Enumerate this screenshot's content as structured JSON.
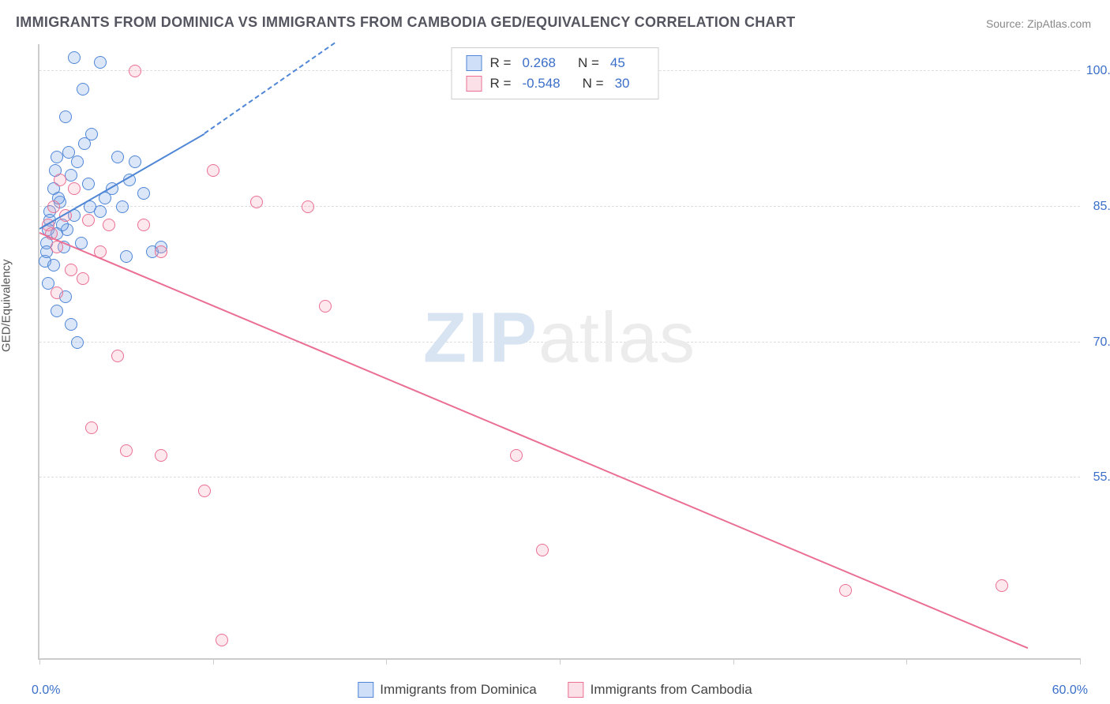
{
  "title": "IMMIGRANTS FROM DOMINICA VS IMMIGRANTS FROM CAMBODIA GED/EQUIVALENCY CORRELATION CHART",
  "source_label": "Source: ",
  "source_site": "ZipAtlas.com",
  "watermark": {
    "part1": "ZIP",
    "part2": "atlas"
  },
  "y_axis_title": "GED/Equivalency",
  "chart": {
    "type": "scatter",
    "xlim": [
      0,
      60
    ],
    "ylim": [
      35,
      103
    ],
    "x_ticks": [
      0,
      10,
      20,
      30,
      40,
      50,
      60
    ],
    "y_ticks": [
      55,
      70,
      85,
      100
    ],
    "y_tick_labels": [
      "55.0%",
      "70.0%",
      "85.0%",
      "100.0%"
    ],
    "x_min_label": "0.0%",
    "x_max_label": "60.0%",
    "grid_color": "#dddddd",
    "axis_color": "#cccccc",
    "background_color": "#ffffff",
    "tick_label_color": "#3b6fc9",
    "marker_radius": 8,
    "marker_border_width": 1.5,
    "marker_fill_opacity": 0.25
  },
  "series": [
    {
      "id": "dominica",
      "label": "Immigrants from Dominica",
      "color": "#6fa0e8",
      "border_color": "#4f86d6",
      "R": "0.268",
      "N": "45",
      "points": [
        [
          2.0,
          101.5
        ],
        [
          3.5,
          101.0
        ],
        [
          2.5,
          98.0
        ],
        [
          1.5,
          95.0
        ],
        [
          3.0,
          93.0
        ],
        [
          1.0,
          90.5
        ],
        [
          2.2,
          90.0
        ],
        [
          4.5,
          90.5
        ],
        [
          5.5,
          90.0
        ],
        [
          1.8,
          88.5
        ],
        [
          0.8,
          87.0
        ],
        [
          2.8,
          87.5
        ],
        [
          4.2,
          87.0
        ],
        [
          1.2,
          85.5
        ],
        [
          0.6,
          84.5
        ],
        [
          2.0,
          84.0
        ],
        [
          3.5,
          84.5
        ],
        [
          0.5,
          82.5
        ],
        [
          1.0,
          82.0
        ],
        [
          1.6,
          82.5
        ],
        [
          0.4,
          81.0
        ],
        [
          1.4,
          80.5
        ],
        [
          2.4,
          81.0
        ],
        [
          0.3,
          79.0
        ],
        [
          0.8,
          78.5
        ],
        [
          5.0,
          79.5
        ],
        [
          6.5,
          80.0
        ],
        [
          7.0,
          80.5
        ],
        [
          0.5,
          76.5
        ],
        [
          1.5,
          75.0
        ],
        [
          1.0,
          73.5
        ],
        [
          1.8,
          72.0
        ],
        [
          2.2,
          70.0
        ],
        [
          0.6,
          83.5
        ],
        [
          1.1,
          86.0
        ],
        [
          2.9,
          85.0
        ],
        [
          3.8,
          86.0
        ],
        [
          4.8,
          85.0
        ],
        [
          0.9,
          89.0
        ],
        [
          1.7,
          91.0
        ],
        [
          2.6,
          92.0
        ],
        [
          5.2,
          88.0
        ],
        [
          6.0,
          86.5
        ],
        [
          0.4,
          80.0
        ],
        [
          1.3,
          83.0
        ]
      ],
      "trend": {
        "x1": 0,
        "y1": 82.5,
        "x2": 9.5,
        "y2": 93.0,
        "solid": true
      },
      "trend_ext": {
        "x1": 9.5,
        "y1": 93.0,
        "x2": 17,
        "y2": 103.0,
        "solid": false
      }
    },
    {
      "id": "cambodia",
      "label": "Immigrants from Cambodia",
      "color": "#f4a2b8",
      "border_color": "#ea6f93",
      "R": "-0.548",
      "N": "30",
      "points": [
        [
          5.5,
          100.0
        ],
        [
          1.2,
          88.0
        ],
        [
          2.0,
          87.0
        ],
        [
          0.8,
          85.0
        ],
        [
          1.5,
          84.0
        ],
        [
          0.5,
          83.0
        ],
        [
          2.8,
          83.5
        ],
        [
          4.0,
          83.0
        ],
        [
          6.0,
          83.0
        ],
        [
          10.0,
          89.0
        ],
        [
          12.5,
          85.5
        ],
        [
          15.5,
          85.0
        ],
        [
          1.0,
          80.5
        ],
        [
          3.5,
          80.0
        ],
        [
          7.0,
          80.0
        ],
        [
          1.8,
          78.0
        ],
        [
          2.5,
          77.0
        ],
        [
          1.0,
          75.5
        ],
        [
          4.5,
          68.5
        ],
        [
          16.5,
          74.0
        ],
        [
          3.0,
          60.5
        ],
        [
          5.0,
          58.0
        ],
        [
          7.0,
          57.5
        ],
        [
          9.5,
          53.5
        ],
        [
          27.5,
          57.5
        ],
        [
          10.5,
          37.0
        ],
        [
          29.0,
          47.0
        ],
        [
          46.5,
          42.5
        ],
        [
          55.5,
          43.0
        ],
        [
          0.7,
          82.0
        ]
      ],
      "trend": {
        "x1": 0,
        "y1": 82.0,
        "x2": 57,
        "y2": 36.0,
        "solid": true
      }
    }
  ],
  "legend_top": {
    "R_prefix": "R =",
    "N_prefix": "N ="
  }
}
